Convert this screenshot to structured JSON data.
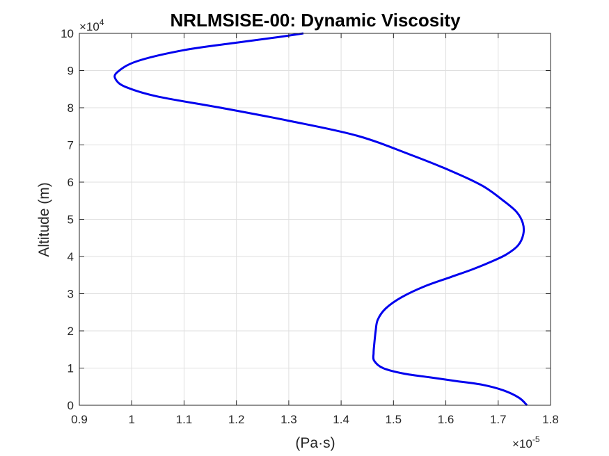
{
  "chart_data": {
    "type": "line",
    "title": "NRLMSISE-00: Dynamic Viscosity",
    "xlabel": "(Pa·s)",
    "ylabel": "Altitude (m)",
    "x_exponent_label": {
      "base": "×10",
      "exp": "-5"
    },
    "y_exponent_label": {
      "base": "×10",
      "exp": "4"
    },
    "xlim": [
      0.9,
      1.8
    ],
    "ylim": [
      0,
      10
    ],
    "x_ticks": [
      0.9,
      1.0,
      1.1,
      1.2,
      1.3,
      1.4,
      1.5,
      1.6,
      1.7,
      1.8
    ],
    "x_tick_labels": [
      "0.9",
      "1",
      "1.1",
      "1.2",
      "1.3",
      "1.4",
      "1.5",
      "1.6",
      "1.7",
      "1.8"
    ],
    "y_ticks": [
      0,
      1,
      2,
      3,
      4,
      5,
      6,
      7,
      8,
      9,
      10
    ],
    "y_tick_labels": [
      "0",
      "1",
      "2",
      "3",
      "4",
      "5",
      "6",
      "7",
      "8",
      "9",
      "10"
    ],
    "grid": true,
    "line_color": "#0000ee",
    "series": [
      {
        "x": [
          1.755,
          1.74,
          1.71,
          1.67,
          1.62,
          1.57,
          1.52,
          1.48,
          1.463,
          1.462,
          1.463,
          1.466,
          1.47,
          1.485,
          1.515,
          1.56,
          1.61,
          1.65,
          1.685,
          1.715,
          1.738,
          1.748,
          1.747,
          1.735,
          1.71,
          1.67,
          1.61,
          1.53,
          1.43,
          1.3,
          1.17,
          1.05,
          0.99,
          0.97,
          0.972,
          1.01,
          1.1,
          1.2,
          1.28,
          1.328
        ],
        "y": [
          0,
          0.2,
          0.4,
          0.55,
          0.65,
          0.75,
          0.85,
          1.0,
          1.2,
          1.4,
          1.6,
          2.0,
          2.3,
          2.6,
          2.9,
          3.2,
          3.45,
          3.65,
          3.85,
          4.05,
          4.3,
          4.6,
          4.9,
          5.2,
          5.5,
          5.9,
          6.3,
          6.75,
          7.25,
          7.65,
          8.0,
          8.3,
          8.55,
          8.75,
          8.95,
          9.25,
          9.55,
          9.75,
          9.9,
          10.0
        ]
      }
    ]
  }
}
